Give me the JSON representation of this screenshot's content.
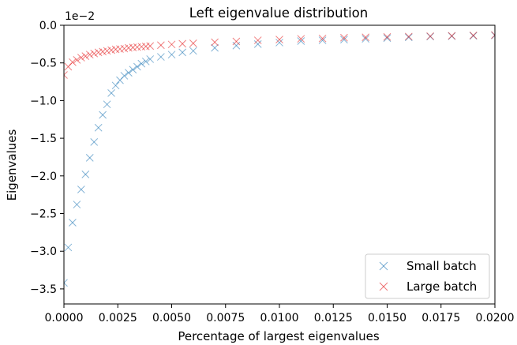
{
  "chart_data": {
    "type": "scatter",
    "title": "Left eigenvalue distribution",
    "xlabel": "Percentage of largest eigenvalues",
    "ylabel": "Eigenvalues",
    "y_offset_label": "1e−2",
    "xlim": [
      0.0,
      0.02
    ],
    "ylim": [
      -3.7,
      0.0
    ],
    "x_ticks": [
      0.0,
      0.0025,
      0.005,
      0.0075,
      0.01,
      0.0125,
      0.015,
      0.0175,
      0.02
    ],
    "x_tick_labels": [
      "0.0000",
      "0.0025",
      "0.0050",
      "0.0075",
      "0.0100",
      "0.0125",
      "0.0150",
      "0.0175",
      "0.0200"
    ],
    "y_ticks": [
      0.0,
      -0.5,
      -1.0,
      -1.5,
      -2.0,
      -2.5,
      -3.0,
      -3.5
    ],
    "y_tick_labels": [
      "0.0",
      "−0.5",
      "−1.0",
      "−1.5",
      "−2.0",
      "−2.5",
      "−3.0",
      "−3.5"
    ],
    "marker": "x",
    "legend_position": "bottom-right",
    "grid": false,
    "series": [
      {
        "name": "Small batch",
        "color": "#1f77b4",
        "x": [
          0.0,
          0.0002,
          0.0004,
          0.0006,
          0.0008,
          0.001,
          0.0012,
          0.0014,
          0.0016,
          0.0018,
          0.002,
          0.0022,
          0.0024,
          0.0026,
          0.0028,
          0.003,
          0.0032,
          0.0034,
          0.0036,
          0.0038,
          0.004,
          0.0045,
          0.005,
          0.0055,
          0.006,
          0.007,
          0.008,
          0.009,
          0.01,
          0.011,
          0.012,
          0.013,
          0.014,
          0.015,
          0.016,
          0.017,
          0.018,
          0.019,
          0.02
        ],
        "y": [
          -3.42,
          -2.95,
          -2.62,
          -2.38,
          -2.18,
          -1.98,
          -1.76,
          -1.55,
          -1.36,
          -1.19,
          -1.05,
          -0.9,
          -0.8,
          -0.73,
          -0.67,
          -0.63,
          -0.59,
          -0.55,
          -0.51,
          -0.48,
          -0.45,
          -0.42,
          -0.39,
          -0.36,
          -0.34,
          -0.3,
          -0.27,
          -0.25,
          -0.23,
          -0.21,
          -0.2,
          -0.19,
          -0.18,
          -0.17,
          -0.16,
          -0.15,
          -0.145,
          -0.14,
          -0.135
        ]
      },
      {
        "name": "Large batch",
        "color": "#e41a1c",
        "x": [
          0.0,
          0.0002,
          0.0004,
          0.0006,
          0.0008,
          0.001,
          0.0012,
          0.0014,
          0.0016,
          0.0018,
          0.002,
          0.0022,
          0.0024,
          0.0026,
          0.0028,
          0.003,
          0.0032,
          0.0034,
          0.0036,
          0.0038,
          0.004,
          0.0045,
          0.005,
          0.0055,
          0.006,
          0.007,
          0.008,
          0.009,
          0.01,
          0.011,
          0.012,
          0.013,
          0.014,
          0.015,
          0.016,
          0.017,
          0.018,
          0.019,
          0.02
        ],
        "y": [
          -0.66,
          -0.55,
          -0.49,
          -0.46,
          -0.43,
          -0.41,
          -0.39,
          -0.375,
          -0.36,
          -0.35,
          -0.34,
          -0.33,
          -0.32,
          -0.315,
          -0.31,
          -0.3,
          -0.295,
          -0.29,
          -0.285,
          -0.28,
          -0.275,
          -0.265,
          -0.255,
          -0.245,
          -0.24,
          -0.225,
          -0.215,
          -0.2,
          -0.19,
          -0.18,
          -0.175,
          -0.165,
          -0.16,
          -0.155,
          -0.15,
          -0.145,
          -0.14,
          -0.135,
          -0.13
        ]
      }
    ]
  }
}
